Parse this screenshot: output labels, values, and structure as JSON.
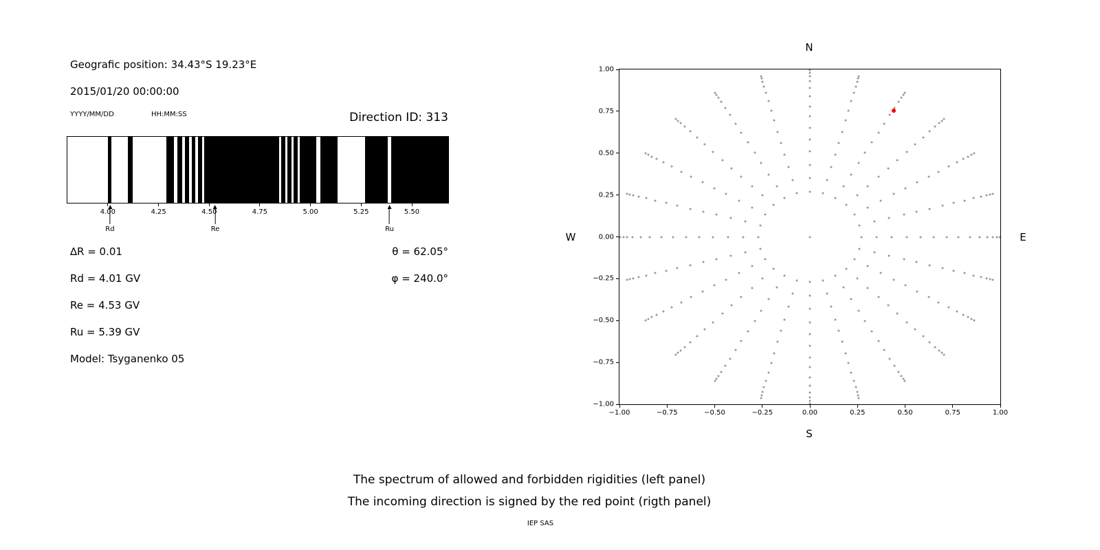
{
  "header": {
    "geo_position": "Geografic position: 34.43°S 19.23°E",
    "datetime": "2015/01/20 00:00:00",
    "date_format": "YYYY/MM/DD",
    "time_format": "HH:MM:SS",
    "direction_id": "Direction ID: 313"
  },
  "info": {
    "delta_r": "∆R = 0.01",
    "rd": "Rd = 4.01 GV",
    "re": "Re = 4.53 GV",
    "ru": "Ru = 5.39 GV",
    "model": "Model: Tsyganenko 05",
    "theta": "θ = 62.05°",
    "phi": "φ = 240.0°"
  },
  "caption": {
    "line1": "The spectrum of allowed and forbidden rigidities (left panel)",
    "line2": "The incoming direction is signed by the red point (rigth panel)",
    "credit": "IEP SAS"
  },
  "chart_data": [
    {
      "name": "rigidity-spectrum",
      "type": "bar",
      "style": "barcode-penumbra",
      "xlim": [
        3.8,
        5.68
      ],
      "xticks": [
        4.0,
        4.25,
        4.5,
        4.75,
        5.0,
        5.25,
        5.5
      ],
      "band_color": "#000000",
      "background_color": "#ffffff",
      "black_bands": [
        [
          4.0,
          4.018
        ],
        [
          4.1,
          4.122
        ],
        [
          4.29,
          4.327
        ],
        [
          4.343,
          4.367
        ],
        [
          4.38,
          4.401
        ],
        [
          4.414,
          4.431
        ],
        [
          4.444,
          4.466
        ],
        [
          4.474,
          4.845
        ],
        [
          4.856,
          4.876
        ],
        [
          4.886,
          4.906
        ],
        [
          4.916,
          4.936
        ],
        [
          4.946,
          5.03
        ],
        [
          5.05,
          5.132
        ],
        [
          5.27,
          5.382
        ],
        [
          5.398,
          5.68
        ]
      ],
      "annotations": [
        {
          "label": "Rd",
          "x": 4.01
        },
        {
          "label": "Re",
          "x": 4.53
        },
        {
          "label": "Ru",
          "x": 5.39
        }
      ]
    },
    {
      "name": "incoming-direction-map",
      "type": "scatter",
      "xlim": [
        -1,
        1
      ],
      "ylim": [
        -1,
        1
      ],
      "xticks": [
        -1.0,
        -0.75,
        -0.5,
        -0.25,
        0.0,
        0.25,
        0.5,
        0.75,
        1.0
      ],
      "yticks": [
        1.0,
        0.75,
        0.5,
        0.25,
        0.0,
        -0.25,
        -0.5,
        -0.75,
        -1.0
      ],
      "compass": {
        "top": "N",
        "right": "E",
        "bottom": "S",
        "left": "W"
      },
      "grid": false,
      "dot_color": "#9a9a9a",
      "center_dot": true,
      "spokes": {
        "count": 24,
        "start_angle_deg": 0,
        "step_deg": 15,
        "radii": [
          0.27,
          0.35,
          0.43,
          0.51,
          0.58,
          0.65,
          0.72,
          0.78,
          0.84,
          0.89,
          0.93,
          0.96,
          0.98,
          0.995
        ]
      },
      "red_point": {
        "x": 0.44,
        "y": 0.755,
        "color": "#ff0000"
      }
    }
  ]
}
